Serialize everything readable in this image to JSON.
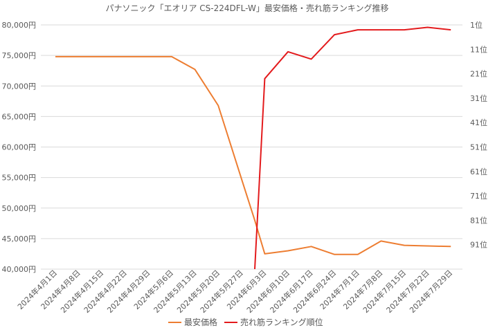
{
  "chart_data": {
    "type": "line",
    "title": "パナソニック「エオリア CS-224DFL-W」最安価格・売れ筋ランキング推移",
    "x": [
      "2024年4月1日",
      "2024年4月8日",
      "2024年4月15日",
      "2024年4月22日",
      "2024年4月29日",
      "2024年5月6日",
      "2024年5月13日",
      "2024年5月20日",
      "2024年5月27日",
      "2024年6月3日",
      "2024年6月10日",
      "2024年6月17日",
      "2024年6月24日",
      "2024年7月1日",
      "2024年7月8日",
      "2024年7月15日",
      "2024年7月22日",
      "2024年7月29日"
    ],
    "x_tick_labels": [
      "2024年4月1日",
      "2024年4月8日",
      "2024年4月15日",
      "2024年4月22日",
      "2024年4月29日",
      "2024年5月6日",
      "2024年5月13日",
      "2024年5月20日",
      "2024年5月27日",
      "2024年6月3日",
      "2024年6月10日",
      "2024年6月17日",
      "2024年6月24日",
      "2024年7月1日",
      "2024年7月8日",
      "2024年7月15日",
      "2024年7月22日",
      "2024年7月29日"
    ],
    "left_axis": {
      "ylim": [
        40000,
        80000
      ],
      "ticks": [
        40000,
        45000,
        50000,
        55000,
        60000,
        65000,
        70000,
        75000,
        80000
      ],
      "tick_labels": [
        "40,000円",
        "45,000円",
        "50,000円",
        "55,000円",
        "60,000円",
        "65,000円",
        "70,000円",
        "75,000円",
        "80,000円"
      ]
    },
    "right_axis": {
      "ylim": [
        1,
        101
      ],
      "inverted": true,
      "ticks": [
        1,
        11,
        21,
        31,
        41,
        51,
        61,
        71,
        81,
        91
      ],
      "tick_labels": [
        "1位",
        "11位",
        "21位",
        "31位",
        "41位",
        "51位",
        "61位",
        "71位",
        "81位",
        "91位"
      ]
    },
    "grid": true,
    "legend_position": "bottom",
    "series": [
      {
        "name": "最安価格",
        "axis": "left",
        "color": "#ED7D31",
        "x": [
          "2024-04-01",
          "2024-04-08",
          "2024-04-15",
          "2024-04-22",
          "2024-04-29",
          "2024-05-06",
          "2024-05-13",
          "2024-05-20",
          "2024-05-27",
          "2024-05-31",
          "2024-06-03",
          "2024-06-10",
          "2024-06-17",
          "2024-06-24",
          "2024-07-01",
          "2024-07-08",
          "2024-07-15",
          "2024-07-22",
          "2024-07-29"
        ],
        "values": [
          74800,
          74800,
          74800,
          74800,
          74800,
          74800,
          72700,
          66800,
          54800,
          48000,
          42500,
          43000,
          43700,
          42400,
          42400,
          44600,
          43900,
          43800,
          43700
        ]
      },
      {
        "name": "売れ筋ランキング順位",
        "axis": "right",
        "color": "#E31A1C",
        "x": [
          "2024-05-31",
          "2024-06-03",
          "2024-06-10",
          "2024-06-17",
          "2024-06-24",
          "2024-07-01",
          "2024-07-08",
          "2024-07-15",
          "2024-07-22",
          "2024-07-29"
        ],
        "values": [
          101,
          23,
          12,
          15,
          5,
          3,
          3,
          3,
          2,
          3
        ]
      }
    ]
  }
}
